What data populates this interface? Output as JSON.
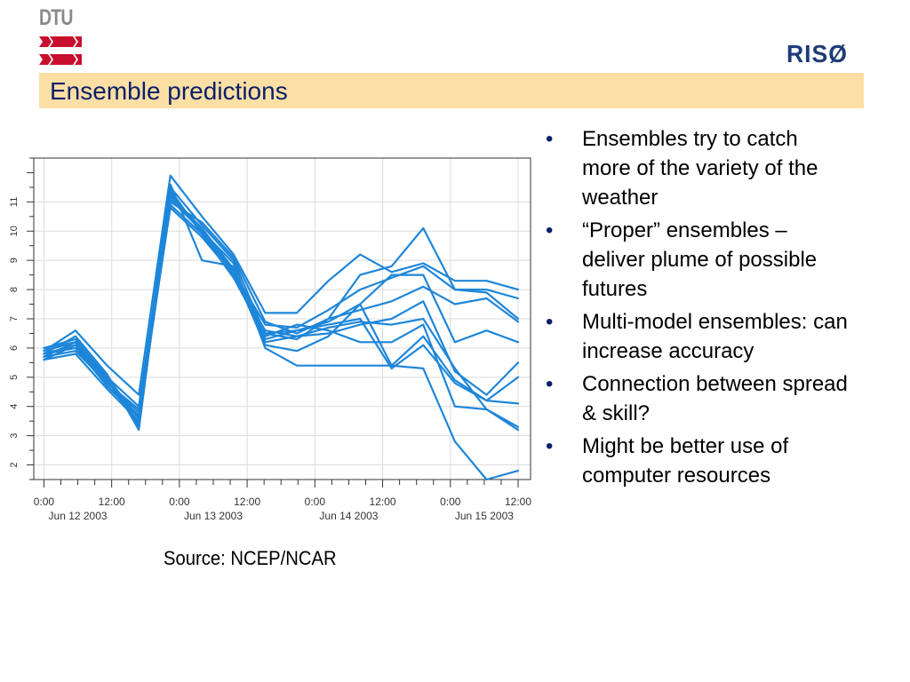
{
  "header": {
    "dtu_logo_text": "DTU",
    "riso_logo_text": "RISØ",
    "title": "Ensemble predictions"
  },
  "colors": {
    "title_bar": "#fcdfa4",
    "title_text": "#0a1f6a",
    "dtu_red": "#c8102e",
    "series_blue": "#1e86d9",
    "riso_blue": "#1f3c78"
  },
  "source": "Source: NCEP/NCAR",
  "bullets": [
    {
      "lines": [
        "Ensembles try to catch",
        "more of the variety of the",
        "weather"
      ]
    },
    {
      "lines": [
        "“Proper” ensembles –",
        "deliver plume of possible",
        "futures"
      ]
    },
    {
      "lines": [
        "Multi-model ensembles: can",
        "increase accuracy"
      ]
    },
    {
      "lines": [
        "Connection between spread",
        "& skill?"
      ]
    },
    {
      "lines": [
        "Might be better use of",
        "computer resources"
      ]
    }
  ],
  "chart_data": {
    "type": "line",
    "grid": true,
    "legend": "none",
    "ylim": [
      1.5,
      12.5
    ],
    "y_ticks": [
      2,
      3,
      4,
      5,
      6,
      7,
      8,
      9,
      10,
      11
    ],
    "x": [
      0,
      9,
      18,
      27,
      36,
      45,
      54,
      63,
      72,
      81,
      90,
      99,
      108,
      117,
      126,
      135
    ],
    "x_tick_positions": [
      0,
      12,
      24,
      36,
      48,
      60,
      72,
      84
    ],
    "x_tick_labels": [
      "0:00",
      "12:00",
      "0:00",
      "12:00",
      "0:00",
      "12:00",
      "0:00",
      "12:00"
    ],
    "date_tick_positions": [
      6,
      30,
      54,
      78
    ],
    "date_labels": [
      "Jun 12 2003",
      "Jun 13 2003",
      "Jun 14 2003",
      "Jun 15 2003"
    ],
    "series": [
      {
        "values": [
          5.9,
          6.6,
          5.4,
          4.4,
          11.9,
          10.5,
          9.2,
          7.2,
          7.2,
          8.3,
          9.2,
          8.6,
          8.9,
          8.3,
          8.3,
          8.0
        ]
      },
      {
        "values": [
          5.8,
          6.4,
          5.1,
          3.2,
          11.5,
          10.2,
          9.0,
          6.5,
          6.3,
          7.0,
          8.5,
          8.8,
          10.1,
          8.0,
          7.9,
          7.0
        ]
      },
      {
        "values": [
          6.0,
          6.3,
          5.0,
          4.0,
          11.3,
          10.0,
          8.6,
          6.8,
          6.7,
          7.3,
          8.0,
          8.4,
          8.8,
          8.0,
          8.0,
          7.7
        ]
      },
      {
        "values": [
          5.7,
          6.2,
          4.8,
          3.8,
          11.6,
          9.0,
          8.8,
          6.3,
          6.6,
          6.9,
          7.5,
          8.5,
          8.5,
          6.2,
          6.6,
          6.2
        ]
      },
      {
        "values": [
          5.6,
          6.1,
          5.0,
          3.6,
          11.0,
          10.3,
          9.1,
          6.9,
          6.5,
          7.0,
          7.3,
          7.6,
          8.1,
          7.5,
          7.7,
          6.9
        ]
      },
      {
        "values": [
          5.9,
          6.2,
          4.9,
          3.4,
          11.2,
          10.1,
          8.7,
          6.2,
          6.4,
          6.5,
          6.8,
          7.0,
          7.6,
          5.2,
          4.4,
          5.5
        ]
      },
      {
        "values": [
          5.8,
          6.0,
          4.7,
          3.7,
          10.8,
          9.8,
          8.5,
          6.6,
          6.4,
          6.7,
          6.9,
          6.8,
          7.0,
          5.3,
          3.9,
          3.3
        ]
      },
      {
        "values": [
          5.6,
          5.8,
          4.6,
          3.5,
          10.9,
          9.9,
          8.6,
          6.1,
          5.9,
          6.4,
          7.5,
          5.4,
          6.4,
          4.9,
          4.2,
          4.1
        ]
      },
      {
        "values": [
          5.7,
          5.9,
          4.8,
          3.9,
          11.1,
          10.0,
          8.9,
          6.0,
          5.4,
          5.4,
          5.4,
          5.4,
          5.3,
          2.8,
          1.5,
          1.8
        ]
      },
      {
        "values": [
          6.0,
          6.2,
          4.9,
          3.3,
          11.4,
          9.9,
          8.4,
          6.4,
          6.8,
          6.6,
          6.2,
          6.2,
          6.8,
          4.0,
          3.9,
          3.2
        ]
      },
      {
        "values": [
          5.8,
          6.1,
          4.7,
          3.6,
          11.2,
          10.0,
          8.6,
          6.5,
          6.6,
          6.8,
          7.0,
          5.3,
          6.1,
          4.8,
          4.2,
          5.0
        ]
      }
    ]
  }
}
